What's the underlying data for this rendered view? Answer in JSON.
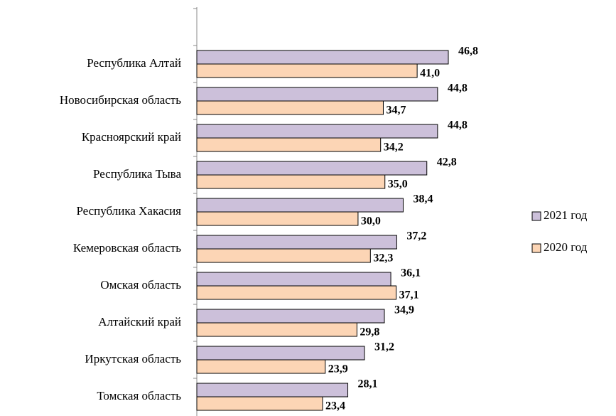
{
  "chart_data": {
    "type": "barh",
    "categories": [
      "Республика Алтай",
      "Новосибирская область",
      "Красноярский край",
      "Республика Тыва",
      "Республика Хакасия",
      "Кемеровская область",
      "Омская область",
      "Алтайский край",
      "Иркутская область",
      "Томская область"
    ],
    "series": [
      {
        "name": "2021 год",
        "color": "#ccc0da",
        "values": [
          46.8,
          44.8,
          44.8,
          42.8,
          38.4,
          37.2,
          36.1,
          34.9,
          31.2,
          28.1
        ],
        "value_labels": [
          "46,8",
          "44,8",
          "44,8",
          "42,8",
          "38,4",
          "37,2",
          "36,1",
          "34,9",
          "31,2",
          "28,1"
        ]
      },
      {
        "name": "2020 год",
        "color": "#fcd5b5",
        "values": [
          41.0,
          34.7,
          34.2,
          35.0,
          30.0,
          32.3,
          37.1,
          29.8,
          23.9,
          23.4
        ],
        "value_labels": [
          "41,0",
          "34,7",
          "34,2",
          "35,0",
          "30,0",
          "32,3",
          "37,1",
          "29,8",
          "23,9",
          "23,4"
        ]
      }
    ],
    "legend": "right"
  }
}
